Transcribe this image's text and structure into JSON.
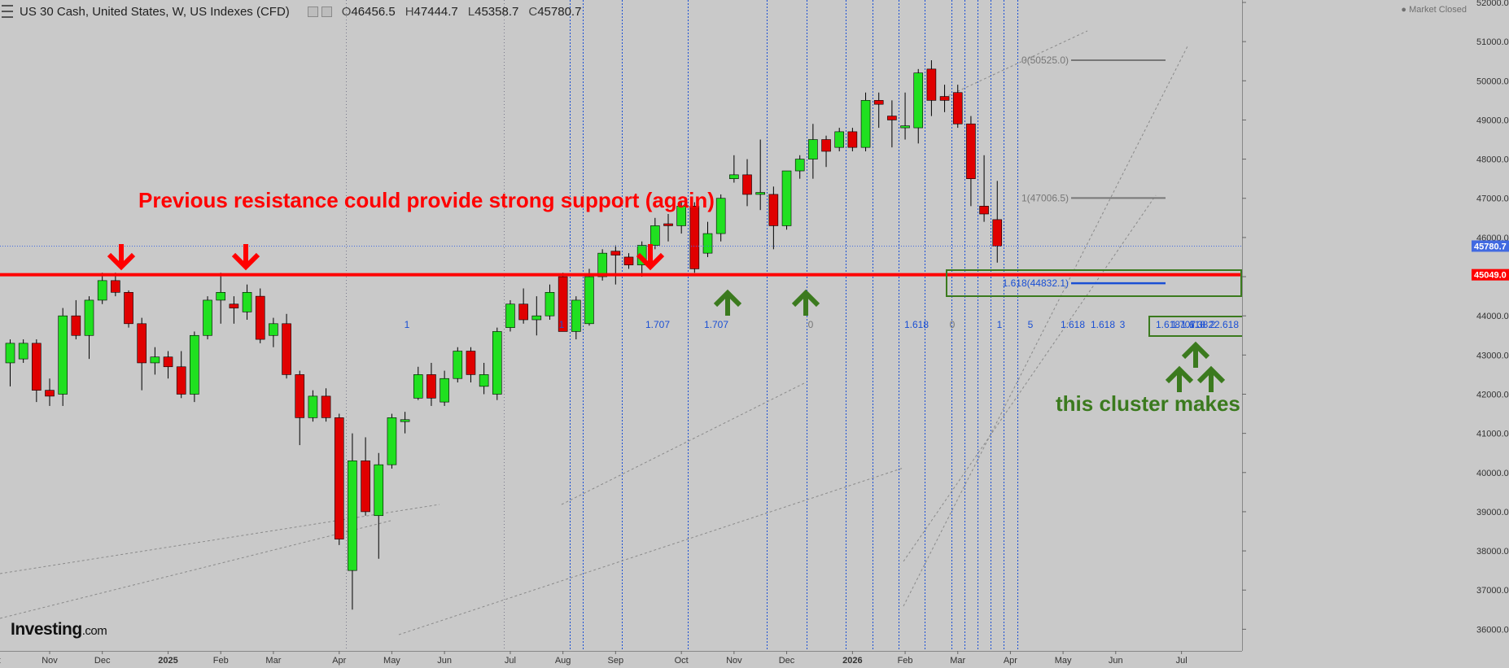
{
  "header": {
    "title": "US 30 Cash, United States, W, US Indexes (CFD)",
    "open_label": "O",
    "open": "46456.5",
    "high_label": "H",
    "high": "47444.7",
    "low_label": "L",
    "low": "45358.7",
    "close_label": "C",
    "close": "45780.7"
  },
  "status": "Market Closed",
  "logo": {
    "main": "Investing",
    "suffix": ".com"
  },
  "annotations": {
    "resistance_text": "Previous resistance could provide strong support (again)",
    "cluster_text": "this cluster makes me go hmmm ...."
  },
  "colors": {
    "bull": "#20e020",
    "bear": "#e00000",
    "support": "#ff0000",
    "fib": "#1a4fd4",
    "annotation_red": "#ff0000",
    "annotation_green": "#3b7a1e",
    "price_tag": "#4169e1"
  },
  "chart_data": {
    "type": "candlestick",
    "ylim": [
      35800,
      52000
    ],
    "y_ticks": [
      36000,
      37000,
      38000,
      39000,
      40000,
      41000,
      42000,
      43000,
      44000,
      45000,
      46000,
      47000,
      48000,
      49000,
      50000,
      51000,
      52000
    ],
    "y_tick_labels": [
      "36000.0",
      "37000.0",
      "38000.0",
      "39000.0",
      "40000.0",
      "41000.0",
      "42000.0",
      "43000.0",
      "44000.0",
      "45000.0",
      "46000.0",
      "47000.0",
      "48000.0",
      "49000.0",
      "50000.0",
      "51000.0",
      "52000.0"
    ],
    "x_labels": [
      {
        "label": "ct",
        "week": -1
      },
      {
        "label": "Nov",
        "week": 3
      },
      {
        "label": "Dec",
        "week": 7
      },
      {
        "label": "2025",
        "week": 12
      },
      {
        "label": "Feb",
        "week": 16
      },
      {
        "label": "Mar",
        "week": 20
      },
      {
        "label": "Apr",
        "week": 25
      },
      {
        "label": "May",
        "week": 29
      },
      {
        "label": "Jun",
        "week": 33
      },
      {
        "label": "Jul",
        "week": 38
      },
      {
        "label": "Aug",
        "week": 42
      },
      {
        "label": "Sep",
        "week": 46
      },
      {
        "label": "Oct",
        "week": 51
      },
      {
        "label": "Nov",
        "week": 55
      },
      {
        "label": "Dec",
        "week": 59
      },
      {
        "label": "2026",
        "week": 64
      },
      {
        "label": "Feb",
        "week": 68
      },
      {
        "label": "Mar",
        "week": 72
      },
      {
        "label": "Apr",
        "week": 76
      },
      {
        "label": "May",
        "week": 80
      },
      {
        "label": "Jun",
        "week": 84
      },
      {
        "label": "Jul",
        "week": 89
      }
    ],
    "candles": [
      {
        "o": 42800,
        "h": 43400,
        "l": 42200,
        "c": 43300
      },
      {
        "o": 42900,
        "h": 43400,
        "l": 42800,
        "c": 43300
      },
      {
        "o": 43300,
        "h": 43400,
        "l": 41800,
        "c": 42100
      },
      {
        "o": 42100,
        "h": 42400,
        "l": 41700,
        "c": 41950
      },
      {
        "o": 42000,
        "h": 44200,
        "l": 41700,
        "c": 44000
      },
      {
        "o": 44000,
        "h": 44400,
        "l": 43400,
        "c": 43500
      },
      {
        "o": 43500,
        "h": 44500,
        "l": 42900,
        "c": 44400
      },
      {
        "o": 44400,
        "h": 45100,
        "l": 44300,
        "c": 44900
      },
      {
        "o": 44900,
        "h": 45100,
        "l": 44500,
        "c": 44600
      },
      {
        "o": 44600,
        "h": 44650,
        "l": 43700,
        "c": 43800
      },
      {
        "o": 43800,
        "h": 43950,
        "l": 42100,
        "c": 42800
      },
      {
        "o": 42800,
        "h": 43200,
        "l": 42500,
        "c": 42950
      },
      {
        "o": 42950,
        "h": 43100,
        "l": 42400,
        "c": 42700
      },
      {
        "o": 42700,
        "h": 43100,
        "l": 41900,
        "c": 42000
      },
      {
        "o": 42000,
        "h": 43600,
        "l": 41800,
        "c": 43500
      },
      {
        "o": 43500,
        "h": 44500,
        "l": 43400,
        "c": 44400
      },
      {
        "o": 44400,
        "h": 45100,
        "l": 43800,
        "c": 44600
      },
      {
        "o": 44300,
        "h": 44500,
        "l": 43800,
        "c": 44200
      },
      {
        "o": 44100,
        "h": 44800,
        "l": 43900,
        "c": 44600
      },
      {
        "o": 44500,
        "h": 44700,
        "l": 43300,
        "c": 43400
      },
      {
        "o": 43500,
        "h": 43950,
        "l": 43200,
        "c": 43800
      },
      {
        "o": 43800,
        "h": 44050,
        "l": 42400,
        "c": 42500
      },
      {
        "o": 42500,
        "h": 42600,
        "l": 40700,
        "c": 41400
      },
      {
        "o": 41400,
        "h": 42100,
        "l": 41300,
        "c": 41950
      },
      {
        "o": 41950,
        "h": 42150,
        "l": 41300,
        "c": 41400
      },
      {
        "o": 41400,
        "h": 41500,
        "l": 38150,
        "c": 38300
      },
      {
        "o": 37500,
        "h": 41000,
        "l": 36500,
        "c": 40300
      },
      {
        "o": 40300,
        "h": 40900,
        "l": 38900,
        "c": 39000
      },
      {
        "o": 38900,
        "h": 40500,
        "l": 37800,
        "c": 40200
      },
      {
        "o": 40200,
        "h": 41500,
        "l": 40100,
        "c": 41400
      },
      {
        "o": 41300,
        "h": 41550,
        "l": 41000,
        "c": 41350
      },
      {
        "o": 41900,
        "h": 42700,
        "l": 41850,
        "c": 42500
      },
      {
        "o": 42500,
        "h": 42800,
        "l": 41700,
        "c": 41900
      },
      {
        "o": 41800,
        "h": 42600,
        "l": 41700,
        "c": 42400
      },
      {
        "o": 42400,
        "h": 43200,
        "l": 42300,
        "c": 43100
      },
      {
        "o": 43100,
        "h": 43200,
        "l": 42300,
        "c": 42500
      },
      {
        "o": 42200,
        "h": 42800,
        "l": 42000,
        "c": 42500
      },
      {
        "o": 42000,
        "h": 43700,
        "l": 41850,
        "c": 43600
      },
      {
        "o": 43700,
        "h": 44400,
        "l": 43600,
        "c": 44300
      },
      {
        "o": 44300,
        "h": 44700,
        "l": 43800,
        "c": 43900
      },
      {
        "o": 43900,
        "h": 44500,
        "l": 43500,
        "c": 44000
      },
      {
        "o": 44000,
        "h": 44800,
        "l": 43900,
        "c": 44600
      },
      {
        "o": 45000,
        "h": 45100,
        "l": 43700,
        "c": 43600
      },
      {
        "o": 43600,
        "h": 44500,
        "l": 43400,
        "c": 44400
      },
      {
        "o": 43800,
        "h": 45200,
        "l": 43750,
        "c": 45000
      },
      {
        "o": 45000,
        "h": 45700,
        "l": 44900,
        "c": 45600
      },
      {
        "o": 45650,
        "h": 45800,
        "l": 44800,
        "c": 45550
      },
      {
        "o": 45500,
        "h": 45600,
        "l": 45200,
        "c": 45300
      },
      {
        "o": 45300,
        "h": 45900,
        "l": 45000,
        "c": 45800
      },
      {
        "o": 45800,
        "h": 46500,
        "l": 45700,
        "c": 46300
      },
      {
        "o": 46350,
        "h": 46600,
        "l": 45900,
        "c": 46300
      },
      {
        "o": 46300,
        "h": 46900,
        "l": 46100,
        "c": 46800
      },
      {
        "o": 46800,
        "h": 46900,
        "l": 45100,
        "c": 45200
      },
      {
        "o": 45600,
        "h": 46400,
        "l": 45500,
        "c": 46100
      },
      {
        "o": 46100,
        "h": 47100,
        "l": 45900,
        "c": 47000
      },
      {
        "o": 47500,
        "h": 48100,
        "l": 47400,
        "c": 47600
      },
      {
        "o": 47600,
        "h": 48000,
        "l": 46800,
        "c": 47100
      },
      {
        "o": 47100,
        "h": 48500,
        "l": 46700,
        "c": 47150
      },
      {
        "o": 47100,
        "h": 47300,
        "l": 45700,
        "c": 46300
      },
      {
        "o": 46300,
        "h": 47700,
        "l": 46200,
        "c": 47700
      },
      {
        "o": 47700,
        "h": 48100,
        "l": 47500,
        "c": 48000
      },
      {
        "o": 48000,
        "h": 48900,
        "l": 47500,
        "c": 48500
      },
      {
        "o": 48500,
        "h": 48600,
        "l": 47800,
        "c": 48200
      },
      {
        "o": 48300,
        "h": 48800,
        "l": 48200,
        "c": 48700
      },
      {
        "o": 48700,
        "h": 48800,
        "l": 48200,
        "c": 48300
      },
      {
        "o": 48300,
        "h": 49700,
        "l": 48200,
        "c": 49500
      },
      {
        "o": 49500,
        "h": 49700,
        "l": 48800,
        "c": 49400
      },
      {
        "o": 49100,
        "h": 49500,
        "l": 48300,
        "c": 49000
      },
      {
        "o": 48800,
        "h": 49700,
        "l": 48500,
        "c": 48850
      },
      {
        "o": 48800,
        "h": 50300,
        "l": 48400,
        "c": 50200
      },
      {
        "o": 50300,
        "h": 50525,
        "l": 49100,
        "c": 49500
      },
      {
        "o": 49600,
        "h": 49900,
        "l": 49200,
        "c": 49500
      },
      {
        "o": 49700,
        "h": 49900,
        "l": 48800,
        "c": 48900
      },
      {
        "o": 48900,
        "h": 49100,
        "l": 46800,
        "c": 47500
      },
      {
        "o": 46800,
        "h": 48100,
        "l": 46400,
        "c": 46600
      },
      {
        "o": 46456.5,
        "h": 47444.7,
        "l": 45358.7,
        "c": 45780.7
      }
    ],
    "price_tags": [
      {
        "value": 45780.7,
        "label": "45780.7"
      },
      {
        "value": 45049.0,
        "label": "45049.0"
      }
    ],
    "support_level": 45049.0,
    "fib_levels": [
      {
        "label": "0(50525.0)",
        "value": 50525.0
      },
      {
        "label": "1(47006.5)",
        "value": 47006.5
      },
      {
        "label": "1.618(44832.1)",
        "value": 44832.1
      }
    ],
    "time_fib_labels": [
      "1",
      "1",
      "1.707",
      "1.707",
      "0",
      "1.618",
      "0",
      "1",
      "5",
      "1.618",
      "1.618",
      "3",
      "1.618",
      "1.707",
      "1.618",
      "1.382",
      "2",
      "2.618"
    ],
    "vertical_line_weeks": [
      25.5,
      37.5,
      42.5,
      43.5,
      46.5,
      51.5,
      57.5,
      60.5,
      63.5,
      65.5,
      67.5,
      69.5,
      71.5,
      72.5,
      73.5,
      74.5,
      75.5,
      76.5
    ]
  }
}
